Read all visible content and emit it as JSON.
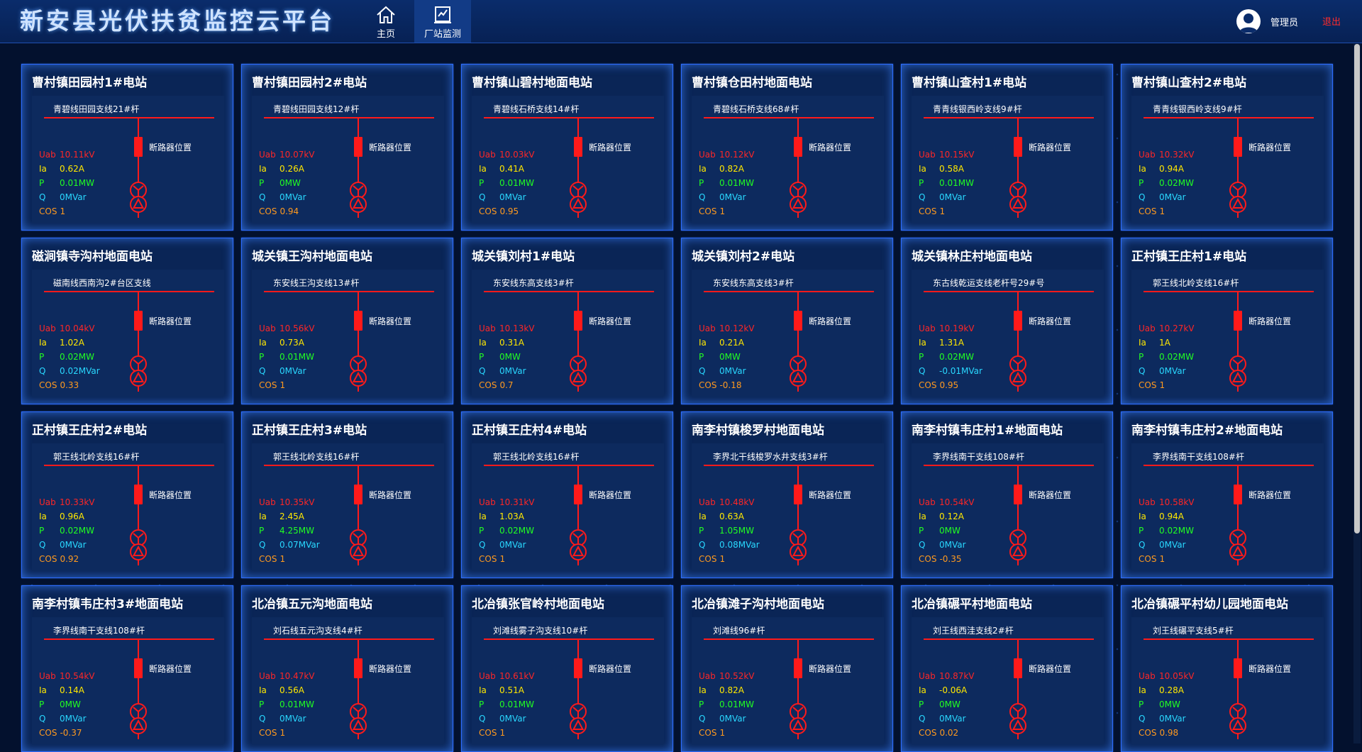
{
  "header": {
    "app_title": "新安县光伏扶贫监控云平台",
    "nav": [
      {
        "label": "主页",
        "icon": "home-icon",
        "active": false
      },
      {
        "label": "厂站监测",
        "icon": "station-monitor-icon",
        "active": true
      }
    ],
    "user_name": "管理员",
    "logout_label": "退出"
  },
  "labels": {
    "breaker": "断路器位置",
    "uab": "Uab",
    "ia": "Ia",
    "p": "P",
    "q": "Q",
    "cos": "COS"
  },
  "colors": {
    "busbar": "#ff1a1a",
    "uab": "#ff2626",
    "ia": "#ffe800",
    "p": "#22ff22",
    "q": "#29d8ff",
    "cos": "#ff9a1f",
    "card_border": "#2d6cff"
  },
  "stations": [
    {
      "name": "曹村镇田园村1#电站",
      "line": "青碧线田园支线21#杆",
      "uab": "10.11kV",
      "ia": "0.62A",
      "p": "0.01MW",
      "q": "0MVar",
      "cos": "1"
    },
    {
      "name": "曹村镇田园村2#电站",
      "line": "青碧线田园支线12#杆",
      "uab": "10.07kV",
      "ia": "0.26A",
      "p": "0MW",
      "q": "0MVar",
      "cos": "0.94"
    },
    {
      "name": "曹村镇山碧村地面电站",
      "line": "青碧线石桥支线14#杆",
      "uab": "10.03kV",
      "ia": "0.41A",
      "p": "0.01MW",
      "q": "0MVar",
      "cos": "0.95"
    },
    {
      "name": "曹村镇仓田村地面电站",
      "line": "青碧线石桥支线68#杆",
      "uab": "10.12kV",
      "ia": "0.82A",
      "p": "0.01MW",
      "q": "0MVar",
      "cos": "1"
    },
    {
      "name": "曹村镇山查村1#电站",
      "line": "青青线银西岭支线9#杆",
      "uab": "10.15kV",
      "ia": "0.58A",
      "p": "0.01MW",
      "q": "0MVar",
      "cos": "1"
    },
    {
      "name": "曹村镇山查村2#电站",
      "line": "青青线银西岭支线9#杆",
      "uab": "10.32kV",
      "ia": "0.94A",
      "p": "0.02MW",
      "q": "0MVar",
      "cos": "1"
    },
    {
      "name": "磁涧镇寺沟村地面电站",
      "line": "磁南线西南沟2#台区支线",
      "uab": "10.04kV",
      "ia": "1.02A",
      "p": "0.02MW",
      "q": "0.02MVar",
      "cos": "0.33"
    },
    {
      "name": "城关镇王沟村地面电站",
      "line": "东安线王沟支线13#杆",
      "uab": "10.56kV",
      "ia": "0.73A",
      "p": "0.01MW",
      "q": "0MVar",
      "cos": "1"
    },
    {
      "name": "城关镇刘村1#电站",
      "line": "东安线东高支线3#杆",
      "uab": "10.13kV",
      "ia": "0.31A",
      "p": "0MW",
      "q": "0MVar",
      "cos": "0.7"
    },
    {
      "name": "城关镇刘村2#电站",
      "line": "东安线东高支线3#杆",
      "uab": "10.12kV",
      "ia": "0.21A",
      "p": "0MW",
      "q": "0MVar",
      "cos": "-0.18"
    },
    {
      "name": "城关镇林庄村地面电站",
      "line": "东古线乾运支线老杆号29#号",
      "uab": "10.19kV",
      "ia": "1.31A",
      "p": "0.02MW",
      "q": "-0.01MVar",
      "cos": "0.95"
    },
    {
      "name": "正村镇王庄村1#电站",
      "line": "郭王线北岭支线16#杆",
      "uab": "10.27kV",
      "ia": "1A",
      "p": "0.02MW",
      "q": "0MVar",
      "cos": "1"
    },
    {
      "name": "正村镇王庄村2#电站",
      "line": "郭王线北岭支线16#杆",
      "uab": "10.33kV",
      "ia": "0.96A",
      "p": "0.02MW",
      "q": "0MVar",
      "cos": "0.92"
    },
    {
      "name": "正村镇王庄村3#电站",
      "line": "郭王线北岭支线16#杆",
      "uab": "10.35kV",
      "ia": "2.45A",
      "p": "4.25MW",
      "q": "0.07MVar",
      "cos": "1"
    },
    {
      "name": "正村镇王庄村4#电站",
      "line": "郭王线北岭支线16#杆",
      "uab": "10.31kV",
      "ia": "1.03A",
      "p": "0.02MW",
      "q": "0MVar",
      "cos": "1"
    },
    {
      "name": "南李村镇梭罗村地面电站",
      "line": "李界北干线梭罗水井支线3#杆",
      "uab": "10.48kV",
      "ia": "0.63A",
      "p": "1.05MW",
      "q": "0.08MVar",
      "cos": "1"
    },
    {
      "name": "南李村镇韦庄村1#地面电站",
      "line": "李界线南干支线108#杆",
      "uab": "10.54kV",
      "ia": "0.12A",
      "p": "0MW",
      "q": "0MVar",
      "cos": "-0.35"
    },
    {
      "name": "南李村镇韦庄村2#地面电站",
      "line": "李界线南干支线108#杆",
      "uab": "10.58kV",
      "ia": "0.94A",
      "p": "0.02MW",
      "q": "0MVar",
      "cos": "1"
    },
    {
      "name": "南李村镇韦庄村3#地面电站",
      "line": "李界线南干支线108#杆",
      "uab": "10.54kV",
      "ia": "0.14A",
      "p": "0MW",
      "q": "0MVar",
      "cos": "-0.37"
    },
    {
      "name": "北冶镇五元沟地面电站",
      "line": "刘石线五元沟支线4#杆",
      "uab": "10.47kV",
      "ia": "0.56A",
      "p": "0.01MW",
      "q": "0MVar",
      "cos": "1"
    },
    {
      "name": "北冶镇张官岭村地面电站",
      "line": "刘滩线雾子沟支线10#杆",
      "uab": "10.61kV",
      "ia": "0.51A",
      "p": "0.01MW",
      "q": "0MVar",
      "cos": "1"
    },
    {
      "name": "北冶镇滩子沟村地面电站",
      "line": "刘滩线96#杆",
      "uab": "10.52kV",
      "ia": "0.82A",
      "p": "0.01MW",
      "q": "0MVar",
      "cos": "1"
    },
    {
      "name": "北冶镇碾平村地面电站",
      "line": "刘王线西洼支线2#杆",
      "uab": "10.87kV",
      "ia": "-0.06A",
      "p": "0MW",
      "q": "0MVar",
      "cos": "0.02"
    },
    {
      "name": "北冶镇碾平村幼儿园地面电站",
      "line": "刘王线碾平支线5#杆",
      "uab": "10.05kV",
      "ia": "0.28A",
      "p": "0MW",
      "q": "0MVar",
      "cos": "0.98"
    }
  ]
}
